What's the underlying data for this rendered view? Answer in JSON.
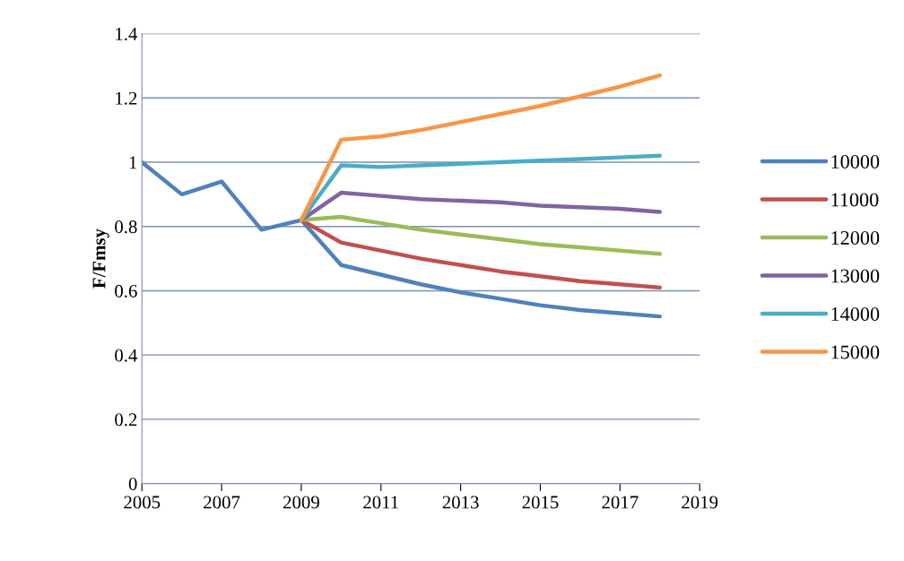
{
  "chart_data": {
    "type": "line",
    "ylabel": "F/Fmsy",
    "xlim": [
      2005,
      2019
    ],
    "xticks": [
      2005,
      2007,
      2009,
      2011,
      2013,
      2015,
      2017,
      2019
    ],
    "ylim": [
      0,
      1.4
    ],
    "yticks": [
      0,
      0.2,
      0.4,
      0.6,
      0.8,
      1,
      1.2,
      1.4
    ],
    "grid": "y",
    "legend": "right",
    "marker": "none",
    "line_style": "solid",
    "series": [
      {
        "name": "10000",
        "color": "#4f81bd",
        "x": [
          2005,
          2006,
          2007,
          2008,
          2009,
          2010,
          2011,
          2012,
          2013,
          2014,
          2015,
          2016,
          2017,
          2018
        ],
        "values": [
          1.0,
          0.9,
          0.94,
          0.79,
          0.82,
          0.68,
          0.65,
          0.62,
          0.595,
          0.575,
          0.555,
          0.54,
          0.53,
          0.52
        ]
      },
      {
        "name": "11000",
        "color": "#c0504d",
        "x": [
          2009,
          2010,
          2011,
          2012,
          2013,
          2014,
          2015,
          2016,
          2017,
          2018
        ],
        "values": [
          0.82,
          0.75,
          0.725,
          0.7,
          0.68,
          0.66,
          0.645,
          0.63,
          0.62,
          0.61
        ]
      },
      {
        "name": "12000",
        "color": "#9bbb59",
        "x": [
          2009,
          2010,
          2011,
          2012,
          2013,
          2014,
          2015,
          2016,
          2017,
          2018
        ],
        "values": [
          0.82,
          0.83,
          0.81,
          0.79,
          0.775,
          0.76,
          0.745,
          0.735,
          0.725,
          0.715
        ]
      },
      {
        "name": "13000",
        "color": "#8064a2",
        "x": [
          2009,
          2010,
          2011,
          2012,
          2013,
          2014,
          2015,
          2016,
          2017,
          2018
        ],
        "values": [
          0.82,
          0.905,
          0.895,
          0.885,
          0.88,
          0.875,
          0.865,
          0.86,
          0.855,
          0.845
        ]
      },
      {
        "name": "14000",
        "color": "#4bacc6",
        "x": [
          2009,
          2010,
          2011,
          2012,
          2013,
          2014,
          2015,
          2016,
          2017,
          2018
        ],
        "values": [
          0.82,
          0.99,
          0.985,
          0.99,
          0.995,
          1.0,
          1.005,
          1.01,
          1.015,
          1.02
        ]
      },
      {
        "name": "15000",
        "color": "#f79646",
        "x": [
          2009,
          2010,
          2011,
          2012,
          2013,
          2014,
          2015,
          2016,
          2017,
          2018
        ],
        "values": [
          0.82,
          1.07,
          1.08,
          1.1,
          1.125,
          1.15,
          1.175,
          1.205,
          1.235,
          1.27
        ]
      }
    ]
  }
}
